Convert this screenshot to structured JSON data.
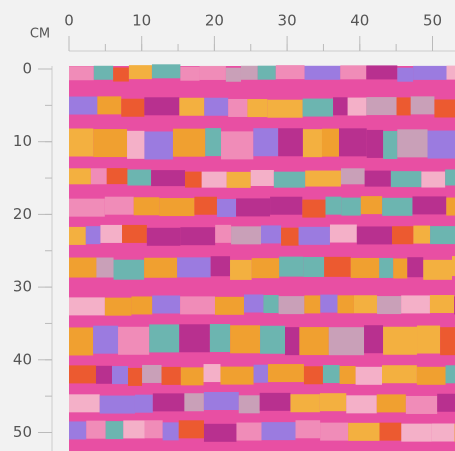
{
  "ruler": {
    "unit": "CM",
    "top_ticks": [
      0,
      10,
      20,
      30,
      40,
      50
    ],
    "left_ticks": [
      0,
      10,
      20,
      30,
      40,
      50
    ]
  }
}
